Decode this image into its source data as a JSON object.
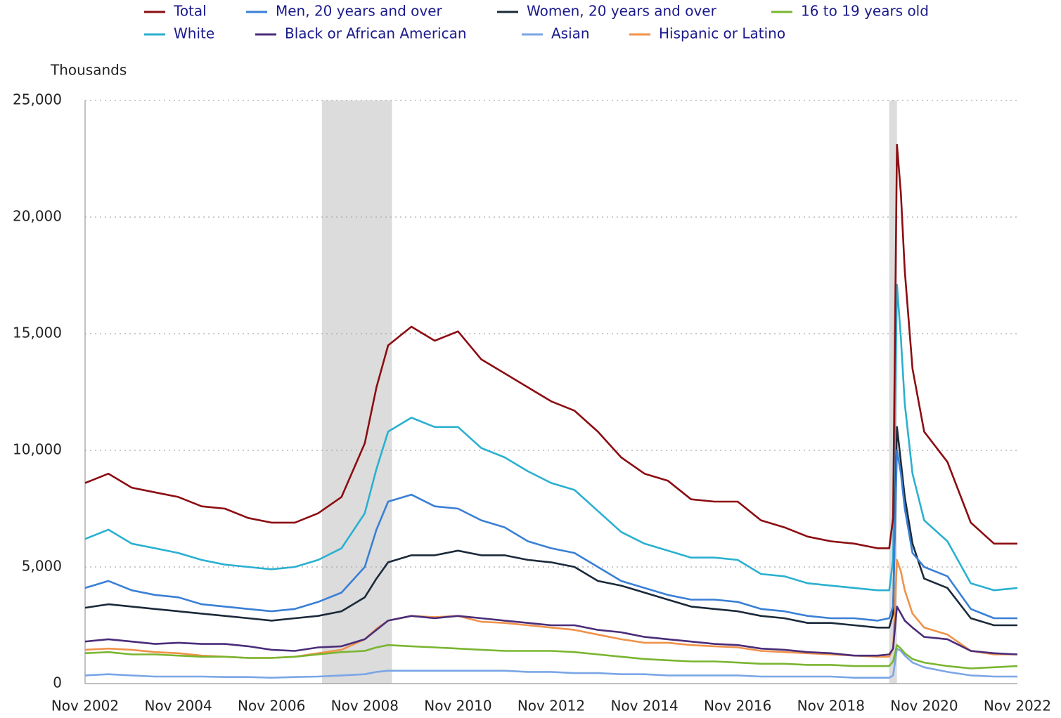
{
  "chart_data": {
    "type": "line",
    "y_axis_label": "Thousands",
    "x": [
      "Nov 2002",
      "May 2003",
      "Nov 2003",
      "May 2004",
      "Nov 2004",
      "May 2005",
      "Nov 2005",
      "May 2006",
      "Nov 2006",
      "May 2007",
      "Nov 2007",
      "May 2008",
      "Nov 2008",
      "Feb 2009",
      "May 2009",
      "Nov 2009",
      "May 2010",
      "Nov 2010",
      "May 2011",
      "Nov 2011",
      "May 2012",
      "Nov 2012",
      "May 2013",
      "Nov 2013",
      "May 2014",
      "Nov 2014",
      "May 2015",
      "Nov 2015",
      "May 2016",
      "Nov 2016",
      "May 2017",
      "Nov 2017",
      "May 2018",
      "Nov 2018",
      "May 2019",
      "Nov 2019",
      "Feb 2020",
      "Mar 2020",
      "Apr 2020",
      "May 2020",
      "Jun 2020",
      "Aug 2020",
      "Nov 2020",
      "May 2021",
      "Nov 2021",
      "May 2022",
      "Nov 2022"
    ],
    "series": [
      {
        "name": "Total",
        "color": "#8b0d12",
        "values": [
          8600,
          9000,
          8400,
          8200,
          8000,
          7600,
          7500,
          7100,
          6900,
          6900,
          7300,
          8000,
          10300,
          12700,
          14500,
          15300,
          14700,
          15100,
          13900,
          13300,
          12700,
          12100,
          11700,
          10800,
          9700,
          9000,
          8700,
          7900,
          7800,
          7800,
          7000,
          6700,
          6300,
          6100,
          6000,
          5800,
          5800,
          7100,
          23100,
          21000,
          17700,
          13500,
          10800,
          9500,
          6900,
          6000,
          6000
        ]
      },
      {
        "name": "Men, 20 years and over",
        "color": "#3a7fd5",
        "values": [
          4100,
          4400,
          4000,
          3800,
          3700,
          3400,
          3300,
          3200,
          3100,
          3200,
          3500,
          3900,
          5000,
          6600,
          7800,
          8100,
          7600,
          7500,
          7000,
          6700,
          6100,
          5800,
          5600,
          5000,
          4400,
          4100,
          3800,
          3600,
          3600,
          3500,
          3200,
          3100,
          2900,
          2800,
          2800,
          2700,
          2800,
          3300,
          10000,
          9000,
          7500,
          5600,
          5000,
          4600,
          3200,
          2800,
          2800
        ]
      },
      {
        "name": "Women, 20 years and over",
        "color": "#1b2a3a",
        "values": [
          3250,
          3400,
          3300,
          3200,
          3100,
          3000,
          2900,
          2800,
          2700,
          2800,
          2900,
          3100,
          3700,
          4500,
          5200,
          5500,
          5500,
          5700,
          5500,
          5500,
          5300,
          5200,
          5000,
          4400,
          4200,
          3900,
          3600,
          3300,
          3200,
          3100,
          2900,
          2800,
          2600,
          2600,
          2500,
          2400,
          2400,
          3000,
          11000,
          9500,
          8000,
          6000,
          4500,
          4100,
          2800,
          2500,
          2500
        ]
      },
      {
        "name": "16 to 19 years old",
        "color": "#7ab530",
        "values": [
          1300,
          1350,
          1250,
          1250,
          1200,
          1150,
          1150,
          1100,
          1100,
          1150,
          1250,
          1350,
          1400,
          1550,
          1650,
          1600,
          1550,
          1500,
          1450,
          1400,
          1400,
          1400,
          1350,
          1250,
          1150,
          1050,
          1000,
          950,
          950,
          900,
          850,
          850,
          800,
          800,
          750,
          750,
          750,
          950,
          1650,
          1500,
          1300,
          1050,
          900,
          750,
          650,
          700,
          750
        ]
      },
      {
        "name": "White",
        "color": "#2ab0d0",
        "values": [
          6200,
          6600,
          6000,
          5800,
          5600,
          5300,
          5100,
          5000,
          4900,
          5000,
          5300,
          5800,
          7300,
          9200,
          10800,
          11400,
          11000,
          11000,
          10100,
          9700,
          9100,
          8600,
          8300,
          7400,
          6500,
          6000,
          5700,
          5400,
          5400,
          5300,
          4700,
          4600,
          4300,
          4200,
          4100,
          4000,
          4000,
          5300,
          17100,
          14800,
          12000,
          9000,
          7000,
          6100,
          4300,
          4000,
          4100
        ]
      },
      {
        "name": "Black or African American",
        "color": "#4a2d7a",
        "values": [
          1800,
          1900,
          1800,
          1700,
          1750,
          1700,
          1700,
          1600,
          1450,
          1400,
          1550,
          1600,
          1900,
          2300,
          2700,
          2900,
          2800,
          2900,
          2800,
          2700,
          2600,
          2500,
          2500,
          2300,
          2200,
          2000,
          1900,
          1800,
          1700,
          1650,
          1500,
          1450,
          1350,
          1300,
          1200,
          1200,
          1250,
          1500,
          3300,
          3000,
          2700,
          2400,
          2000,
          1900,
          1400,
          1300,
          1250
        ]
      },
      {
        "name": "Asian",
        "color": "#7aa6e6",
        "values": [
          350,
          400,
          350,
          300,
          300,
          300,
          280,
          280,
          250,
          280,
          300,
          350,
          400,
          500,
          550,
          550,
          550,
          550,
          550,
          550,
          500,
          500,
          450,
          450,
          400,
          400,
          350,
          350,
          350,
          350,
          300,
          300,
          300,
          300,
          250,
          250,
          250,
          350,
          1500,
          1400,
          1200,
          900,
          700,
          500,
          350,
          300,
          300
        ]
      },
      {
        "name": "Hispanic or Latino",
        "color": "#f0924a",
        "values": [
          1450,
          1500,
          1450,
          1350,
          1300,
          1200,
          1150,
          1100,
          1100,
          1150,
          1300,
          1450,
          1900,
          2350,
          2700,
          2900,
          2850,
          2900,
          2650,
          2600,
          2500,
          2400,
          2300,
          2100,
          1900,
          1750,
          1750,
          1650,
          1600,
          1550,
          1400,
          1350,
          1300,
          1250,
          1200,
          1150,
          1150,
          1500,
          5300,
          4800,
          4000,
          3000,
          2400,
          2100,
          1400,
          1250,
          1250
        ]
      }
    ],
    "xticks": [
      "Nov 2002",
      "Nov 2004",
      "Nov 2006",
      "Nov 2008",
      "Nov 2010",
      "Nov 2012",
      "Nov 2014",
      "Nov 2016",
      "Nov 2018",
      "Nov 2020",
      "Nov 2022"
    ],
    "ylim": [
      0,
      25000
    ],
    "yticks": [
      0,
      {
        "value": 5000,
        "label": "5,000"
      },
      {
        "value": 10000,
        "label": "10,000"
      },
      {
        "value": 15000,
        "label": "15,000"
      },
      {
        "value": 20000,
        "label": "20,000"
      },
      {
        "value": 25000,
        "label": "25,000"
      }
    ],
    "shaded_periods": [
      [
        "Dec 2007",
        "Jun 2009"
      ],
      [
        "Feb 2020",
        "Apr 2020"
      ]
    ],
    "grid": true
  }
}
